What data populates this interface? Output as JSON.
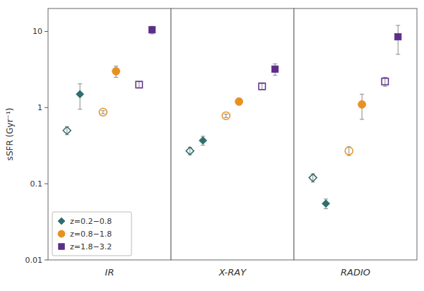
{
  "chart_data": [
    {
      "type": "scatter",
      "xlabel": "IR",
      "ylabel": "sSFR  (Gyr⁻¹)",
      "log": "y",
      "ylim": [
        0.01,
        20
      ],
      "yticks": [
        0.01,
        0.1,
        1,
        10
      ],
      "tick_labels": "y",
      "legend": "lower left",
      "series": [
        {
          "name": "z=0.2−0.8",
          "color": "#2e6e6e",
          "marker": "diamond",
          "values": [
            0.5,
            1.5
          ],
          "errors_lo": [
            0.06,
            0.55
          ],
          "errors_hi": [
            0.06,
            0.55
          ]
        },
        {
          "name": "z=0.8−1.8",
          "color": "#e89020",
          "marker": "circle",
          "values": [
            0.87,
            3.0
          ],
          "errors_lo": [
            0.04,
            0.5
          ],
          "errors_hi": [
            0.04,
            0.5
          ]
        },
        {
          "name": "z=1.8−3.2",
          "color": "#5c2d8a",
          "marker": "square",
          "values": [
            2.0,
            10.5
          ],
          "errors_lo": [
            0.18,
            1.2
          ],
          "errors_hi": [
            0.18,
            1.2
          ]
        }
      ]
    },
    {
      "type": "scatter",
      "xlabel": "X-RAY",
      "log": "y",
      "ylim": [
        0.01,
        20
      ],
      "tick_labels": false,
      "series": [
        {
          "color": "#2e6e6e",
          "marker": "diamond",
          "values": [
            0.27,
            0.37
          ],
          "errors_lo": [
            0.03,
            0.05
          ],
          "errors_hi": [
            0.03,
            0.05
          ]
        },
        {
          "color": "#e89020",
          "marker": "circle",
          "values": [
            0.78,
            1.2
          ],
          "errors_lo": [
            0.04,
            0.12
          ],
          "errors_hi": [
            0.04,
            0.12
          ]
        },
        {
          "color": "#5c2d8a",
          "marker": "square",
          "values": [
            1.9,
            3.2
          ],
          "errors_lo": [
            0.17,
            0.55
          ],
          "errors_hi": [
            0.17,
            0.55
          ]
        }
      ]
    },
    {
      "type": "scatter",
      "xlabel": "RADIO",
      "log": "y",
      "ylim": [
        0.01,
        20
      ],
      "tick_labels": false,
      "series": [
        {
          "color": "#2e6e6e",
          "marker": "diamond",
          "values": [
            0.12,
            0.055
          ],
          "errors_lo": [
            0.015,
            0.008
          ],
          "errors_hi": [
            0.015,
            0.008
          ]
        },
        {
          "color": "#e89020",
          "marker": "circle",
          "values": [
            0.27,
            1.1
          ],
          "errors_lo": [
            0.035,
            0.4
          ],
          "errors_hi": [
            0.035,
            0.4
          ]
        },
        {
          "color": "#5c2d8a",
          "marker": "square",
          "values": [
            2.2,
            8.5
          ],
          "errors_lo": [
            0.3,
            3.5
          ],
          "errors_hi": [
            0.3,
            3.5
          ]
        }
      ]
    }
  ]
}
